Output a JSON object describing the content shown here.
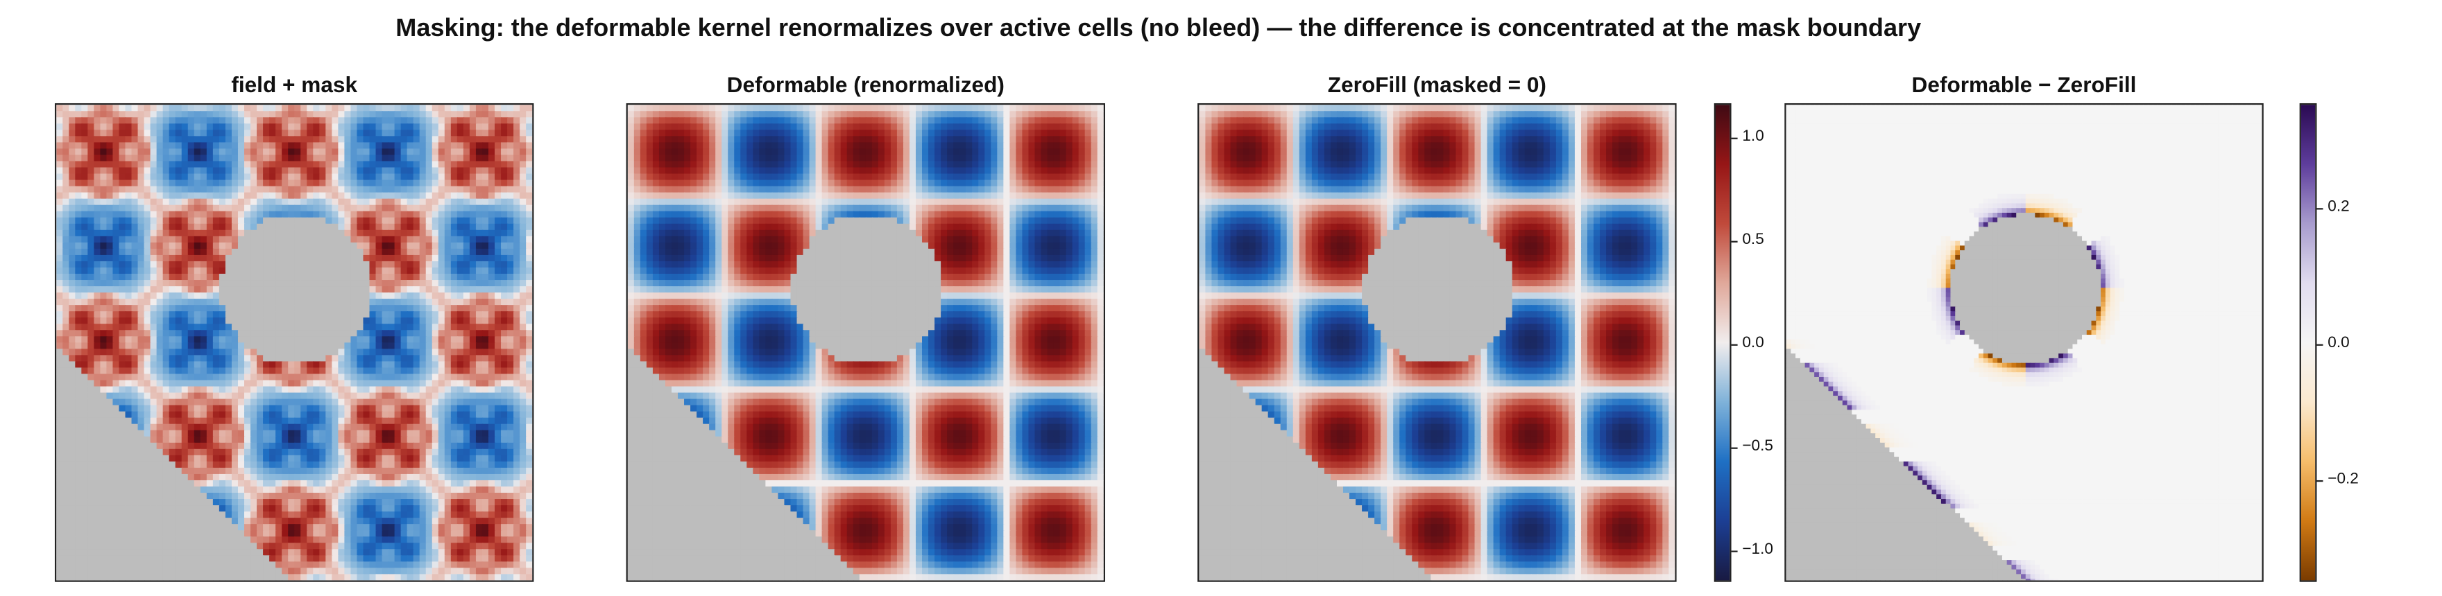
{
  "suptitle": "Masking: the deformable kernel renormalizes over active cells (no bleed) — the difference is concentrated at the mask boundary",
  "panels": [
    {
      "id": "p1",
      "title": "field + mask"
    },
    {
      "id": "p2",
      "title": "Deformable (renormalized)"
    },
    {
      "id": "p3",
      "title": "ZeroFill (masked = 0)"
    },
    {
      "id": "p4",
      "title": "Deformable − ZeroFill"
    }
  ],
  "colors": {
    "mask": "#bdbdbd",
    "balance": [
      "#191a42",
      "#1c3f94",
      "#1f70c4",
      "#7fb2d9",
      "#f1eded",
      "#e0a89a",
      "#c04a3b",
      "#961616",
      "#3f0a14"
    ],
    "puor": [
      "#7a3b00",
      "#d07a14",
      "#f6bd6b",
      "#fbe9cf",
      "#f5f5f5",
      "#e1dcef",
      "#a89cce",
      "#5e3d9c",
      "#2a0a52"
    ]
  },
  "chart_data": [
    {
      "type": "heatmap",
      "title": "field + mask",
      "xlabel": "",
      "ylabel": "",
      "description_of_field": "sin·sin checkerboard with high-frequency modulation; masked circle and lower-left triangle",
      "vmin": -1.15,
      "vmax": 1.15
    },
    {
      "type": "heatmap",
      "title": "Deformable (renormalized)",
      "vmin": -1.15,
      "vmax": 1.15
    },
    {
      "type": "heatmap",
      "title": "ZeroFill (masked = 0)",
      "vmin": -1.15,
      "vmax": 1.15,
      "colorbar": {
        "ticks": [
          1.0,
          0.5,
          0.0,
          -0.5,
          -1.0
        ],
        "tick_labels": [
          "1.0",
          "0.5",
          "0.0",
          "−0.5",
          "−1.0"
        ],
        "range": [
          -1.15,
          1.15
        ]
      }
    },
    {
      "type": "heatmap",
      "title": "Deformable − ZeroFill",
      "vmin": -0.35,
      "vmax": 0.35,
      "colorbar": {
        "ticks": [
          0.2,
          0.0,
          -0.2
        ],
        "tick_labels": [
          "0.2",
          "0.0",
          "−0.2"
        ],
        "range": [
          -0.35,
          0.35
        ]
      }
    }
  ]
}
